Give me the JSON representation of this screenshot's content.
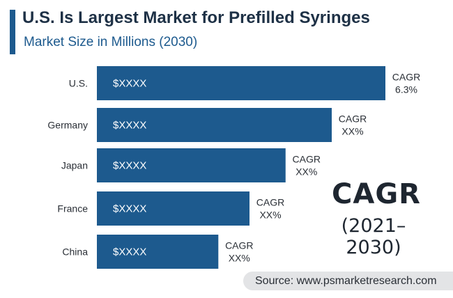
{
  "header": {
    "title": "U.S. Is Largest Market for Prefilled Syringes",
    "subtitle": "Market Size in Millions (2030)"
  },
  "chart_data": {
    "type": "bar",
    "orientation": "horizontal",
    "title": "U.S. Is Largest Market for Prefilled Syringes",
    "subtitle": "Market Size in Millions (2030)",
    "categories": [
      "U.S.",
      "Germany",
      "Japan",
      "France",
      "China"
    ],
    "values": [
      100,
      81.4,
      65.4,
      52.9,
      42.1
    ],
    "bar_labels": [
      "$XXXX",
      "$XXXX",
      "$XXXX",
      "$XXXX",
      "$XXXX"
    ],
    "annotations": [
      [
        "CAGR",
        "6.3%"
      ],
      [
        "CAGR",
        "XX%"
      ],
      [
        "CAGR",
        "XX%"
      ],
      [
        "CAGR",
        "XX%"
      ],
      [
        "CAGR",
        "XX%"
      ]
    ],
    "bar_color": "#1d5a8e",
    "grid": false,
    "legend": "none"
  },
  "callout": {
    "cagr_label": "CAGR",
    "period": "(2021–2030)"
  },
  "source": "Source: www.psmarketresearch.com"
}
